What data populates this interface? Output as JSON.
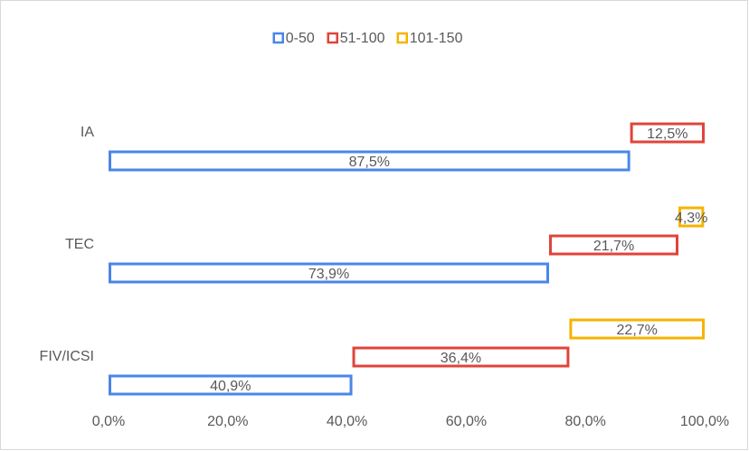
{
  "chart_data": {
    "type": "bar",
    "orientation": "horizontal",
    "stacked": true,
    "categories": [
      "IA",
      "TEC",
      "FIV/ICSI"
    ],
    "series": [
      {
        "name": "0-50",
        "color": "#4a86e8",
        "values": [
          87.5,
          73.9,
          40.9
        ],
        "value_labels": [
          "87,5%",
          "73,9%",
          "40,9%"
        ]
      },
      {
        "name": "51-100",
        "color": "#e0443a",
        "values": [
          12.5,
          21.7,
          36.4
        ],
        "value_labels": [
          "12,5%",
          "21,7%",
          "36,4%"
        ]
      },
      {
        "name": "101-150",
        "color": "#f4b400",
        "values": [
          null,
          4.3,
          22.7
        ],
        "value_labels": [
          null,
          "4,3%",
          "22,7%"
        ]
      }
    ],
    "xlim": [
      0,
      100
    ],
    "xticks": [
      {
        "value": 0,
        "label": "0,0%"
      },
      {
        "value": 20,
        "label": "20,0%"
      },
      {
        "value": 40,
        "label": "40,0%"
      },
      {
        "value": 60,
        "label": "60,0%"
      },
      {
        "value": 80,
        "label": "80,0%"
      },
      {
        "value": 100,
        "label": "100,0%"
      }
    ],
    "legend": "top"
  }
}
